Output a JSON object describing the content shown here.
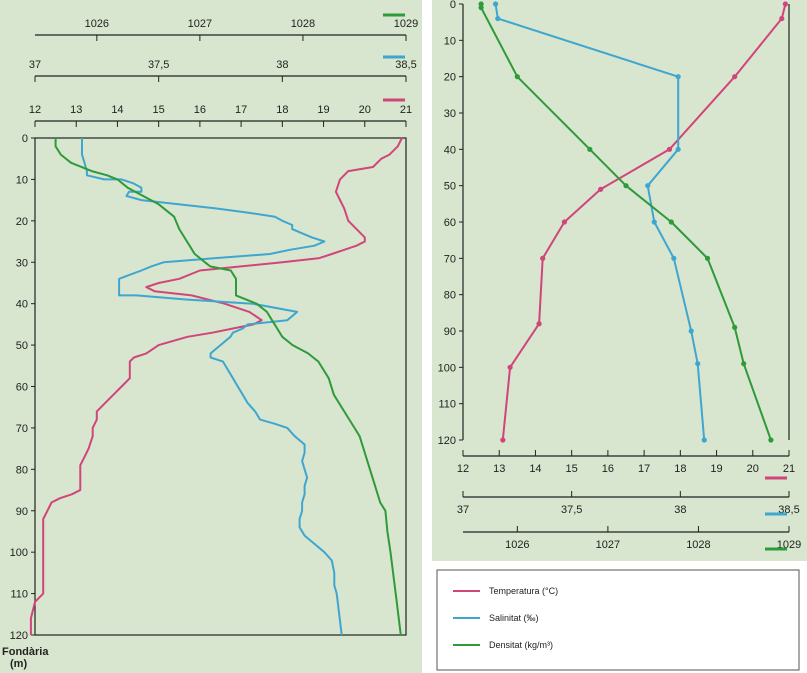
{
  "colors": {
    "background": "#d8e6cf",
    "temperature": "#d0457a",
    "salinity": "#3ea6cf",
    "density": "#2e9a3a",
    "axis": "#222222"
  },
  "left_panel": {
    "ylabel_line1": "Fondària",
    "ylabel_line2": "(m)"
  },
  "legend": {
    "temperature": "Temperatura (°C)",
    "salinity": "Salinitat (‰)",
    "density": "Densitat (kg/m³)"
  },
  "chart_data": [
    {
      "type": "line",
      "title": "",
      "xlabel": "",
      "ylabel": "Fondària (m)",
      "ylim": [
        0,
        120
      ],
      "yaxis_inverted": true,
      "y_ticks": [
        0,
        10,
        20,
        30,
        40,
        50,
        60,
        70,
        80,
        90,
        100,
        110,
        120
      ],
      "grid": false,
      "axes": {
        "density": {
          "range": [
            1025.4,
            1029
          ],
          "ticks": [
            1026,
            1027,
            1028,
            1029
          ],
          "tick_labels": [
            "1026",
            "1027",
            "1028",
            "1029"
          ]
        },
        "salinity": {
          "range": [
            37,
            38.5
          ],
          "ticks": [
            37,
            37.5,
            38,
            38.5
          ],
          "tick_labels": [
            "37",
            "37,5",
            "38",
            "38,5"
          ]
        },
        "temperature": {
          "range": [
            12,
            21
          ],
          "ticks": [
            12,
            13,
            14,
            15,
            16,
            17,
            18,
            19,
            20,
            21
          ],
          "tick_labels": [
            "12",
            "13",
            "14",
            "15",
            "16",
            "17",
            "18",
            "19",
            "20",
            "21"
          ]
        }
      },
      "series": [
        {
          "key": "temperature",
          "points": [
            [
              20.9,
              0
            ],
            [
              20.8,
              2
            ],
            [
              20.6,
              4
            ],
            [
              20.4,
              5
            ],
            [
              20.2,
              7
            ],
            [
              19.6,
              8
            ],
            [
              19.4,
              10
            ],
            [
              19.3,
              13
            ],
            [
              19.5,
              17
            ],
            [
              19.6,
              20
            ],
            [
              19.8,
              22
            ],
            [
              20.0,
              24
            ],
            [
              20.0,
              25
            ],
            [
              19.8,
              26
            ],
            [
              19.5,
              27
            ],
            [
              19.2,
              28
            ],
            [
              18.9,
              29
            ],
            [
              18.0,
              30
            ],
            [
              17.0,
              31
            ],
            [
              16.0,
              32
            ],
            [
              15.5,
              34
            ],
            [
              15.0,
              35
            ],
            [
              14.7,
              36
            ],
            [
              14.9,
              37
            ],
            [
              15.8,
              38
            ],
            [
              16.6,
              40
            ],
            [
              17.2,
              42
            ],
            [
              17.5,
              44
            ],
            [
              17.3,
              45
            ],
            [
              16.8,
              46
            ],
            [
              16.3,
              47
            ],
            [
              15.7,
              48
            ],
            [
              15.0,
              50
            ],
            [
              14.7,
              52
            ],
            [
              14.4,
              53
            ],
            [
              14.3,
              54
            ],
            [
              14.3,
              56
            ],
            [
              14.3,
              58
            ],
            [
              14.1,
              60
            ],
            [
              13.9,
              62
            ],
            [
              13.7,
              64
            ],
            [
              13.5,
              66
            ],
            [
              13.5,
              68
            ],
            [
              13.4,
              70
            ],
            [
              13.4,
              72
            ],
            [
              13.3,
              75
            ],
            [
              13.2,
              77
            ],
            [
              13.1,
              79
            ],
            [
              13.1,
              81
            ],
            [
              13.1,
              83
            ],
            [
              13.1,
              85
            ],
            [
              12.9,
              86
            ],
            [
              12.6,
              87
            ],
            [
              12.4,
              88
            ],
            [
              12.3,
              90
            ],
            [
              12.2,
              92
            ],
            [
              12.2,
              94
            ],
            [
              12.2,
              97
            ],
            [
              12.2,
              100
            ],
            [
              12.2,
              104
            ],
            [
              12.2,
              108
            ],
            [
              12.2,
              110
            ],
            [
              12.0,
              112
            ],
            [
              11.9,
              116
            ],
            [
              11.9,
              120
            ]
          ]
        },
        {
          "key": "salinity",
          "points": [
            [
              37.19,
              0
            ],
            [
              37.19,
              4
            ],
            [
              37.2,
              6
            ],
            [
              37.21,
              8
            ],
            [
              37.21,
              9
            ],
            [
              37.28,
              10
            ],
            [
              37.35,
              10
            ],
            [
              37.4,
              11
            ],
            [
              37.43,
              12
            ],
            [
              37.43,
              13
            ],
            [
              37.38,
              13
            ],
            [
              37.37,
              14
            ],
            [
              37.43,
              15
            ],
            [
              37.58,
              16
            ],
            [
              37.73,
              17
            ],
            [
              37.86,
              18
            ],
            [
              37.97,
              19
            ],
            [
              38.0,
              20
            ],
            [
              38.04,
              21
            ],
            [
              38.04,
              22
            ],
            [
              38.08,
              23
            ],
            [
              38.12,
              24
            ],
            [
              38.17,
              25
            ],
            [
              38.13,
              26
            ],
            [
              38.03,
              27
            ],
            [
              37.95,
              28
            ],
            [
              37.73,
              29
            ],
            [
              37.52,
              30
            ],
            [
              37.47,
              31
            ],
            [
              37.43,
              32
            ],
            [
              37.34,
              34
            ],
            [
              37.34,
              36
            ],
            [
              37.34,
              38
            ],
            [
              37.41,
              38
            ],
            [
              37.61,
              39
            ],
            [
              37.88,
              40
            ],
            [
              38.06,
              42
            ],
            [
              38.02,
              44
            ],
            [
              37.86,
              45
            ],
            [
              37.84,
              46
            ],
            [
              37.8,
              47
            ],
            [
              37.79,
              48
            ],
            [
              37.75,
              50
            ],
            [
              37.71,
              52
            ],
            [
              37.71,
              53
            ],
            [
              37.76,
              54
            ],
            [
              37.78,
              56
            ],
            [
              37.8,
              58
            ],
            [
              37.82,
              60
            ],
            [
              37.84,
              62
            ],
            [
              37.86,
              64
            ],
            [
              37.89,
              66
            ],
            [
              37.91,
              68
            ],
            [
              37.97,
              69
            ],
            [
              38.02,
              70
            ],
            [
              38.05,
              72
            ],
            [
              38.09,
              74
            ],
            [
              38.09,
              76
            ],
            [
              38.08,
              78
            ],
            [
              38.09,
              80
            ],
            [
              38.1,
              82
            ],
            [
              38.09,
              84
            ],
            [
              38.09,
              86
            ],
            [
              38.08,
              88
            ],
            [
              38.08,
              90
            ],
            [
              38.07,
              92
            ],
            [
              38.07,
              94
            ],
            [
              38.09,
              96
            ],
            [
              38.13,
              98
            ],
            [
              38.17,
              100
            ],
            [
              38.2,
              102
            ],
            [
              38.21,
              105
            ],
            [
              38.21,
              108
            ],
            [
              38.22,
              110
            ],
            [
              38.23,
              115
            ],
            [
              38.24,
              120
            ]
          ]
        },
        {
          "key": "density",
          "points": [
            [
              1025.6,
              0
            ],
            [
              1025.6,
              2
            ],
            [
              1025.65,
              4
            ],
            [
              1025.75,
              6
            ],
            [
              1025.95,
              8
            ],
            [
              1026.1,
              9
            ],
            [
              1026.2,
              10
            ],
            [
              1026.3,
              12
            ],
            [
              1026.45,
              14
            ],
            [
              1026.6,
              16
            ],
            [
              1026.75,
              19
            ],
            [
              1026.8,
              22
            ],
            [
              1026.85,
              24
            ],
            [
              1026.9,
              26
            ],
            [
              1026.95,
              28
            ],
            [
              1027.0,
              29
            ],
            [
              1027.05,
              30
            ],
            [
              1027.1,
              31
            ],
            [
              1027.3,
              32
            ],
            [
              1027.35,
              34
            ],
            [
              1027.35,
              38
            ],
            [
              1027.55,
              40
            ],
            [
              1027.65,
              42
            ],
            [
              1027.7,
              44
            ],
            [
              1027.75,
              46
            ],
            [
              1027.8,
              48
            ],
            [
              1027.9,
              50
            ],
            [
              1028.05,
              52
            ],
            [
              1028.15,
              54
            ],
            [
              1028.25,
              58
            ],
            [
              1028.3,
              62
            ],
            [
              1028.4,
              66
            ],
            [
              1028.5,
              70
            ],
            [
              1028.55,
              72
            ],
            [
              1028.6,
              76
            ],
            [
              1028.65,
              80
            ],
            [
              1028.7,
              84
            ],
            [
              1028.75,
              88
            ],
            [
              1028.8,
              90
            ],
            [
              1028.82,
              95
            ],
            [
              1028.85,
              100
            ],
            [
              1028.9,
              110
            ],
            [
              1028.95,
              120
            ]
          ]
        }
      ]
    },
    {
      "type": "line",
      "title": "",
      "xlabel": "",
      "ylabel": "",
      "ylim": [
        0,
        120
      ],
      "yaxis_inverted": true,
      "y_ticks": [
        0,
        10,
        20,
        30,
        40,
        50,
        60,
        70,
        80,
        90,
        100,
        110,
        120
      ],
      "grid": false,
      "axes": {
        "temperature": {
          "range": [
            12,
            21
          ],
          "ticks": [
            12,
            13,
            14,
            15,
            16,
            17,
            18,
            19,
            20,
            21
          ],
          "tick_labels": [
            "12",
            "13",
            "14",
            "15",
            "16",
            "17",
            "18",
            "19",
            "20",
            "21"
          ]
        },
        "salinity": {
          "range": [
            37,
            38.5
          ],
          "ticks": [
            37,
            37.5,
            38,
            38.5
          ],
          "tick_labels": [
            "37",
            "37,5",
            "38",
            "38,5"
          ]
        },
        "density": {
          "range": [
            1025.4,
            1029
          ],
          "ticks": [
            1026,
            1027,
            1028,
            1029
          ],
          "tick_labels": [
            "1026",
            "1027",
            "1028",
            "1029"
          ]
        }
      },
      "series": [
        {
          "key": "temperature",
          "points": [
            [
              20.9,
              0
            ],
            [
              20.8,
              4
            ],
            [
              19.5,
              20
            ],
            [
              17.7,
              40
            ],
            [
              15.8,
              51
            ],
            [
              14.8,
              60
            ],
            [
              14.2,
              70
            ],
            [
              14.1,
              88
            ],
            [
              13.3,
              100
            ],
            [
              13.1,
              120
            ]
          ]
        },
        {
          "key": "salinity",
          "points": [
            [
              37.15,
              0
            ],
            [
              37.16,
              4
            ],
            [
              37.99,
              20
            ],
            [
              37.99,
              40
            ],
            [
              37.85,
              50
            ],
            [
              37.88,
              60
            ],
            [
              37.97,
              70
            ],
            [
              38.05,
              90
            ],
            [
              38.08,
              99
            ],
            [
              38.11,
              120
            ]
          ]
        },
        {
          "key": "density",
          "points": [
            [
              1025.6,
              0
            ],
            [
              1025.6,
              1
            ],
            [
              1026.0,
              20
            ],
            [
              1026.8,
              40
            ],
            [
              1027.2,
              50
            ],
            [
              1027.7,
              60
            ],
            [
              1028.1,
              70
            ],
            [
              1028.4,
              89
            ],
            [
              1028.5,
              99
            ],
            [
              1028.8,
              120
            ]
          ]
        }
      ]
    }
  ]
}
